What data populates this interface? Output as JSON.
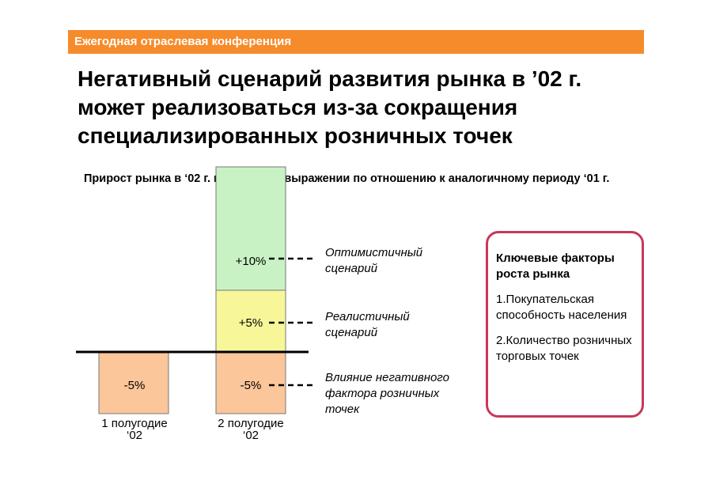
{
  "banner": {
    "text": "Ежегодная отраслевая конференция"
  },
  "title": "Негативный сценарий развития рынка в ’02 г. может реализоваться из-за сокращения специализированных розничных точек",
  "chart_data": {
    "type": "bar",
    "title": "Прирост рынка в ‘02 г. в денежном выражении по отношению к аналогичному периоду ‘01 г.",
    "categories": [
      "1 полугодие ‘02",
      "2 полугодие ‘02"
    ],
    "segments": [
      {
        "category": "1 полугодие ‘02",
        "value": -5,
        "label": "-5%",
        "color": "#fbc69a"
      },
      {
        "category": "2 полугодие ‘02",
        "value": -5,
        "label": "-5%",
        "color": "#fbc69a",
        "scenario": "Влияние негативного фактора розничных точек"
      },
      {
        "category": "2 полугодие ‘02",
        "value": 5,
        "label": "+5%",
        "color": "#f7f79a",
        "scenario": "Реалистичный сценарий"
      },
      {
        "category": "2 полугодие ‘02",
        "value": 10,
        "label": "+10%",
        "color": "#c9f2c4",
        "scenario": "Оптимистичный сценарий"
      }
    ],
    "scenario_labels": {
      "optimistic": "Оптимистичный сценарий",
      "realistic": "Реалистичный сценарий",
      "negative": "Влияние негативного фактора розничных точек"
    },
    "xlabels": {
      "h1_line1": "1 полугодие",
      "h1_line2": "‘02",
      "h2_line1": "2 полугодие",
      "h2_line2": "‘02"
    }
  },
  "factors": {
    "title": "Ключевые факторы роста рынка",
    "items": [
      "1.Покупательская способность населения",
      "2.Количество розничных торговых точек"
    ],
    "border_color": "#c8385a"
  }
}
